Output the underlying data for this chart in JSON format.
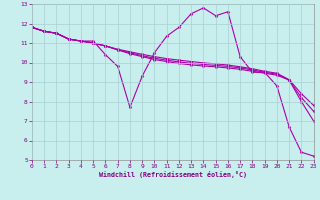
{
  "xlabel": "Windchill (Refroidissement éolien,°C)",
  "background_color": "#c8eeee",
  "grid_color": "#a8d0d0",
  "line_color": "#aa00aa",
  "xlim": [
    0,
    23
  ],
  "ylim": [
    5,
    13
  ],
  "xticks": [
    0,
    1,
    2,
    3,
    4,
    5,
    6,
    7,
    8,
    9,
    10,
    11,
    12,
    13,
    14,
    15,
    16,
    17,
    18,
    19,
    20,
    21,
    22,
    23
  ],
  "yticks": [
    5,
    6,
    7,
    8,
    9,
    10,
    11,
    12,
    13
  ],
  "series": [
    {
      "x": [
        0,
        1,
        2,
        3,
        4,
        5,
        6,
        7,
        8,
        9,
        10,
        11,
        12,
        13,
        14,
        15,
        16,
        17,
        18,
        19,
        20,
        21,
        22,
        23
      ],
      "y": [
        11.8,
        11.6,
        11.5,
        11.2,
        11.1,
        11.1,
        10.4,
        9.8,
        7.7,
        9.3,
        10.5,
        11.35,
        11.8,
        12.5,
        12.8,
        12.4,
        12.6,
        10.3,
        9.5,
        9.5,
        8.8,
        6.7,
        5.4,
        5.2
      ]
    },
    {
      "x": [
        0,
        1,
        2,
        3,
        4,
        5,
        6,
        7,
        8,
        9,
        10,
        11,
        12,
        13,
        14,
        15,
        16,
        17,
        18,
        19,
        20,
        21,
        22,
        23
      ],
      "y": [
        11.8,
        11.6,
        11.5,
        11.2,
        11.1,
        11.0,
        10.85,
        10.65,
        10.45,
        10.3,
        10.15,
        10.05,
        9.95,
        9.88,
        9.82,
        9.78,
        9.72,
        9.65,
        9.55,
        9.45,
        9.35,
        9.1,
        8.0,
        7.0
      ]
    },
    {
      "x": [
        0,
        1,
        2,
        3,
        4,
        5,
        6,
        7,
        8,
        9,
        10,
        11,
        12,
        13,
        14,
        15,
        16,
        17,
        18,
        19,
        20,
        21,
        22,
        23
      ],
      "y": [
        11.8,
        11.6,
        11.5,
        11.2,
        11.1,
        11.0,
        10.85,
        10.65,
        10.5,
        10.35,
        10.22,
        10.12,
        10.03,
        9.96,
        9.9,
        9.85,
        9.8,
        9.72,
        9.62,
        9.5,
        9.4,
        9.1,
        8.2,
        7.5
      ]
    },
    {
      "x": [
        0,
        1,
        2,
        3,
        4,
        5,
        6,
        7,
        8,
        9,
        10,
        11,
        12,
        13,
        14,
        15,
        16,
        17,
        18,
        19,
        20,
        21,
        22,
        23
      ],
      "y": [
        11.8,
        11.6,
        11.5,
        11.2,
        11.1,
        11.0,
        10.85,
        10.68,
        10.55,
        10.42,
        10.3,
        10.2,
        10.12,
        10.05,
        9.98,
        9.93,
        9.87,
        9.78,
        9.68,
        9.55,
        9.45,
        9.12,
        8.4,
        7.8
      ]
    }
  ]
}
